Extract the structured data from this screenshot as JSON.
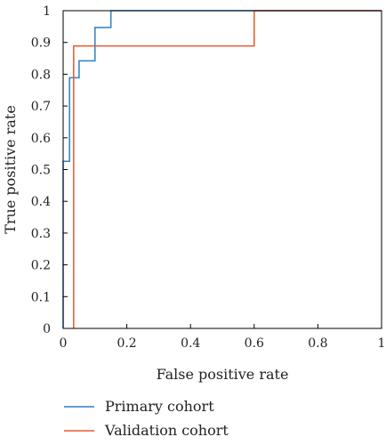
{
  "chart_data": {
    "type": "line",
    "title": "",
    "xlabel": "False positive rate",
    "ylabel": "True positive rate",
    "xlim": [
      0,
      1
    ],
    "ylim": [
      0,
      1
    ],
    "x_ticks": [
      "0",
      "0.2",
      "0.4",
      "0.6",
      "0.8",
      "1"
    ],
    "y_ticks": [
      "0",
      "0.1",
      "0.2",
      "0.3",
      "0.4",
      "0.5",
      "0.6",
      "0.7",
      "0.8",
      "0.9",
      "1"
    ],
    "x_tick_values": [
      0,
      0.2,
      0.4,
      0.6,
      0.8,
      1
    ],
    "y_tick_values": [
      0,
      0.1,
      0.2,
      0.3,
      0.4,
      0.5,
      0.6,
      0.7,
      0.8,
      0.9,
      1
    ],
    "grid": false,
    "legend_position": "bottom-left",
    "series": [
      {
        "name": "Primary cohort",
        "color": "#2e7fc0",
        "x": [
          0,
          0,
          0.02,
          0.02,
          0.05,
          0.05,
          0.1,
          0.1,
          0.15,
          0.15,
          1
        ],
        "y": [
          0,
          0.526,
          0.526,
          0.789,
          0.789,
          0.842,
          0.842,
          0.947,
          0.947,
          1,
          1
        ]
      },
      {
        "name": "Validation cohort",
        "color": "#e35a2b",
        "x": [
          0.033,
          0.033,
          0.6,
          0.6,
          1
        ],
        "y": [
          0,
          0.889,
          0.889,
          1,
          1
        ]
      }
    ]
  }
}
